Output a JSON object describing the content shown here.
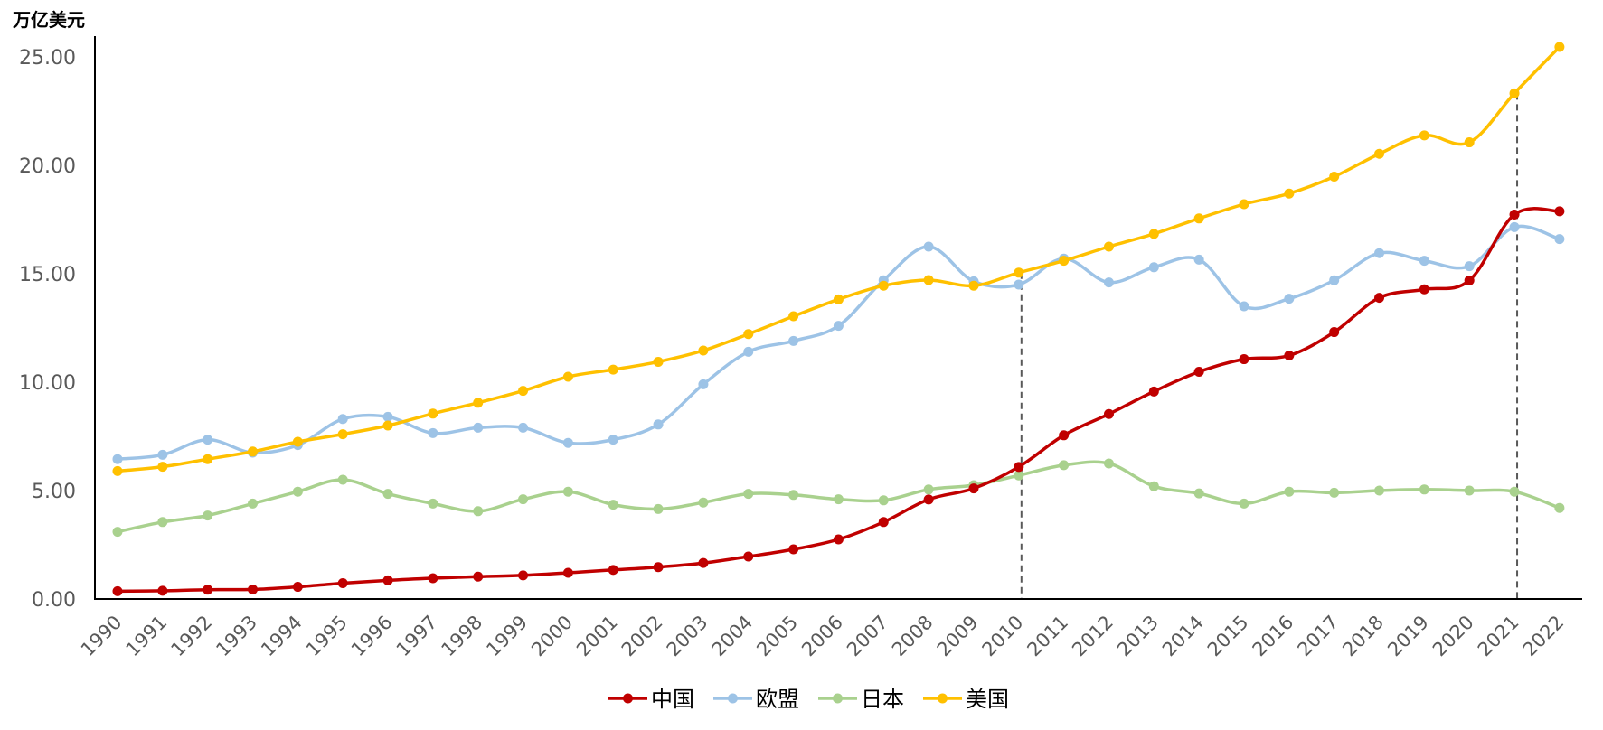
{
  "chart_data": {
    "type": "line",
    "title": "",
    "unit_label": "万亿美元",
    "xlabel": "",
    "ylabel": "万亿美元",
    "ylim": [
      0,
      25
    ],
    "yticks": [
      "0.00",
      "5.00",
      "10.00",
      "15.00",
      "20.00",
      "25.00"
    ],
    "ytick_values": [
      0,
      5,
      10,
      15,
      20,
      25
    ],
    "grid": false,
    "legend_position": "bottom",
    "categories": [
      "1990",
      "1991",
      "1992",
      "1993",
      "1994",
      "1995",
      "1996",
      "1997",
      "1998",
      "1999",
      "2000",
      "2001",
      "2002",
      "2003",
      "2004",
      "2005",
      "2006",
      "2007",
      "2008",
      "2009",
      "2010",
      "2011",
      "2012",
      "2013",
      "2014",
      "2015",
      "2016",
      "2017",
      "2018",
      "2019",
      "2020",
      "2021",
      "2022"
    ],
    "reference_lines": [
      {
        "category": "2010",
        "style": "dashed",
        "from_series": "美国"
      },
      {
        "category": "2021",
        "style": "dashed",
        "from_series": "美国"
      }
    ],
    "series": [
      {
        "name": "中国",
        "color": "#C00000",
        "values": [
          0.36,
          0.38,
          0.43,
          0.44,
          0.56,
          0.73,
          0.86,
          0.96,
          1.03,
          1.09,
          1.21,
          1.34,
          1.47,
          1.66,
          1.96,
          2.29,
          2.75,
          3.55,
          4.59,
          5.1,
          6.09,
          7.55,
          8.53,
          9.57,
          10.48,
          11.06,
          11.23,
          12.31,
          13.89,
          14.28,
          14.69,
          17.73,
          17.88
        ]
      },
      {
        "name": "欧盟",
        "color": "#9DC3E6",
        "values": [
          6.45,
          6.65,
          7.35,
          6.75,
          7.1,
          8.3,
          8.4,
          7.65,
          7.9,
          7.9,
          7.2,
          7.35,
          8.05,
          9.9,
          11.4,
          11.9,
          12.6,
          14.7,
          16.25,
          14.65,
          14.5,
          15.7,
          14.6,
          15.3,
          15.65,
          13.5,
          13.85,
          14.7,
          15.95,
          15.6,
          15.35,
          17.15,
          16.6
        ]
      },
      {
        "name": "日本",
        "color": "#A9D18E",
        "values": [
          3.1,
          3.55,
          3.85,
          4.4,
          4.95,
          5.5,
          4.85,
          4.4,
          4.05,
          4.6,
          4.95,
          4.35,
          4.15,
          4.45,
          4.85,
          4.8,
          4.6,
          4.55,
          5.05,
          5.25,
          5.7,
          6.17,
          6.25,
          5.2,
          4.87,
          4.4,
          4.95,
          4.9,
          5.0,
          5.05,
          5.0,
          4.95,
          4.2
        ]
      },
      {
        "name": "美国",
        "color": "#FFC000",
        "values": [
          5.9,
          6.1,
          6.45,
          6.8,
          7.25,
          7.6,
          8.0,
          8.55,
          9.05,
          9.6,
          10.25,
          10.58,
          10.94,
          11.46,
          12.22,
          13.04,
          13.82,
          14.45,
          14.71,
          14.45,
          15.05,
          15.6,
          16.25,
          16.84,
          17.55,
          18.21,
          18.7,
          19.48,
          20.53,
          21.38,
          21.06,
          23.32,
          25.46
        ]
      }
    ]
  }
}
